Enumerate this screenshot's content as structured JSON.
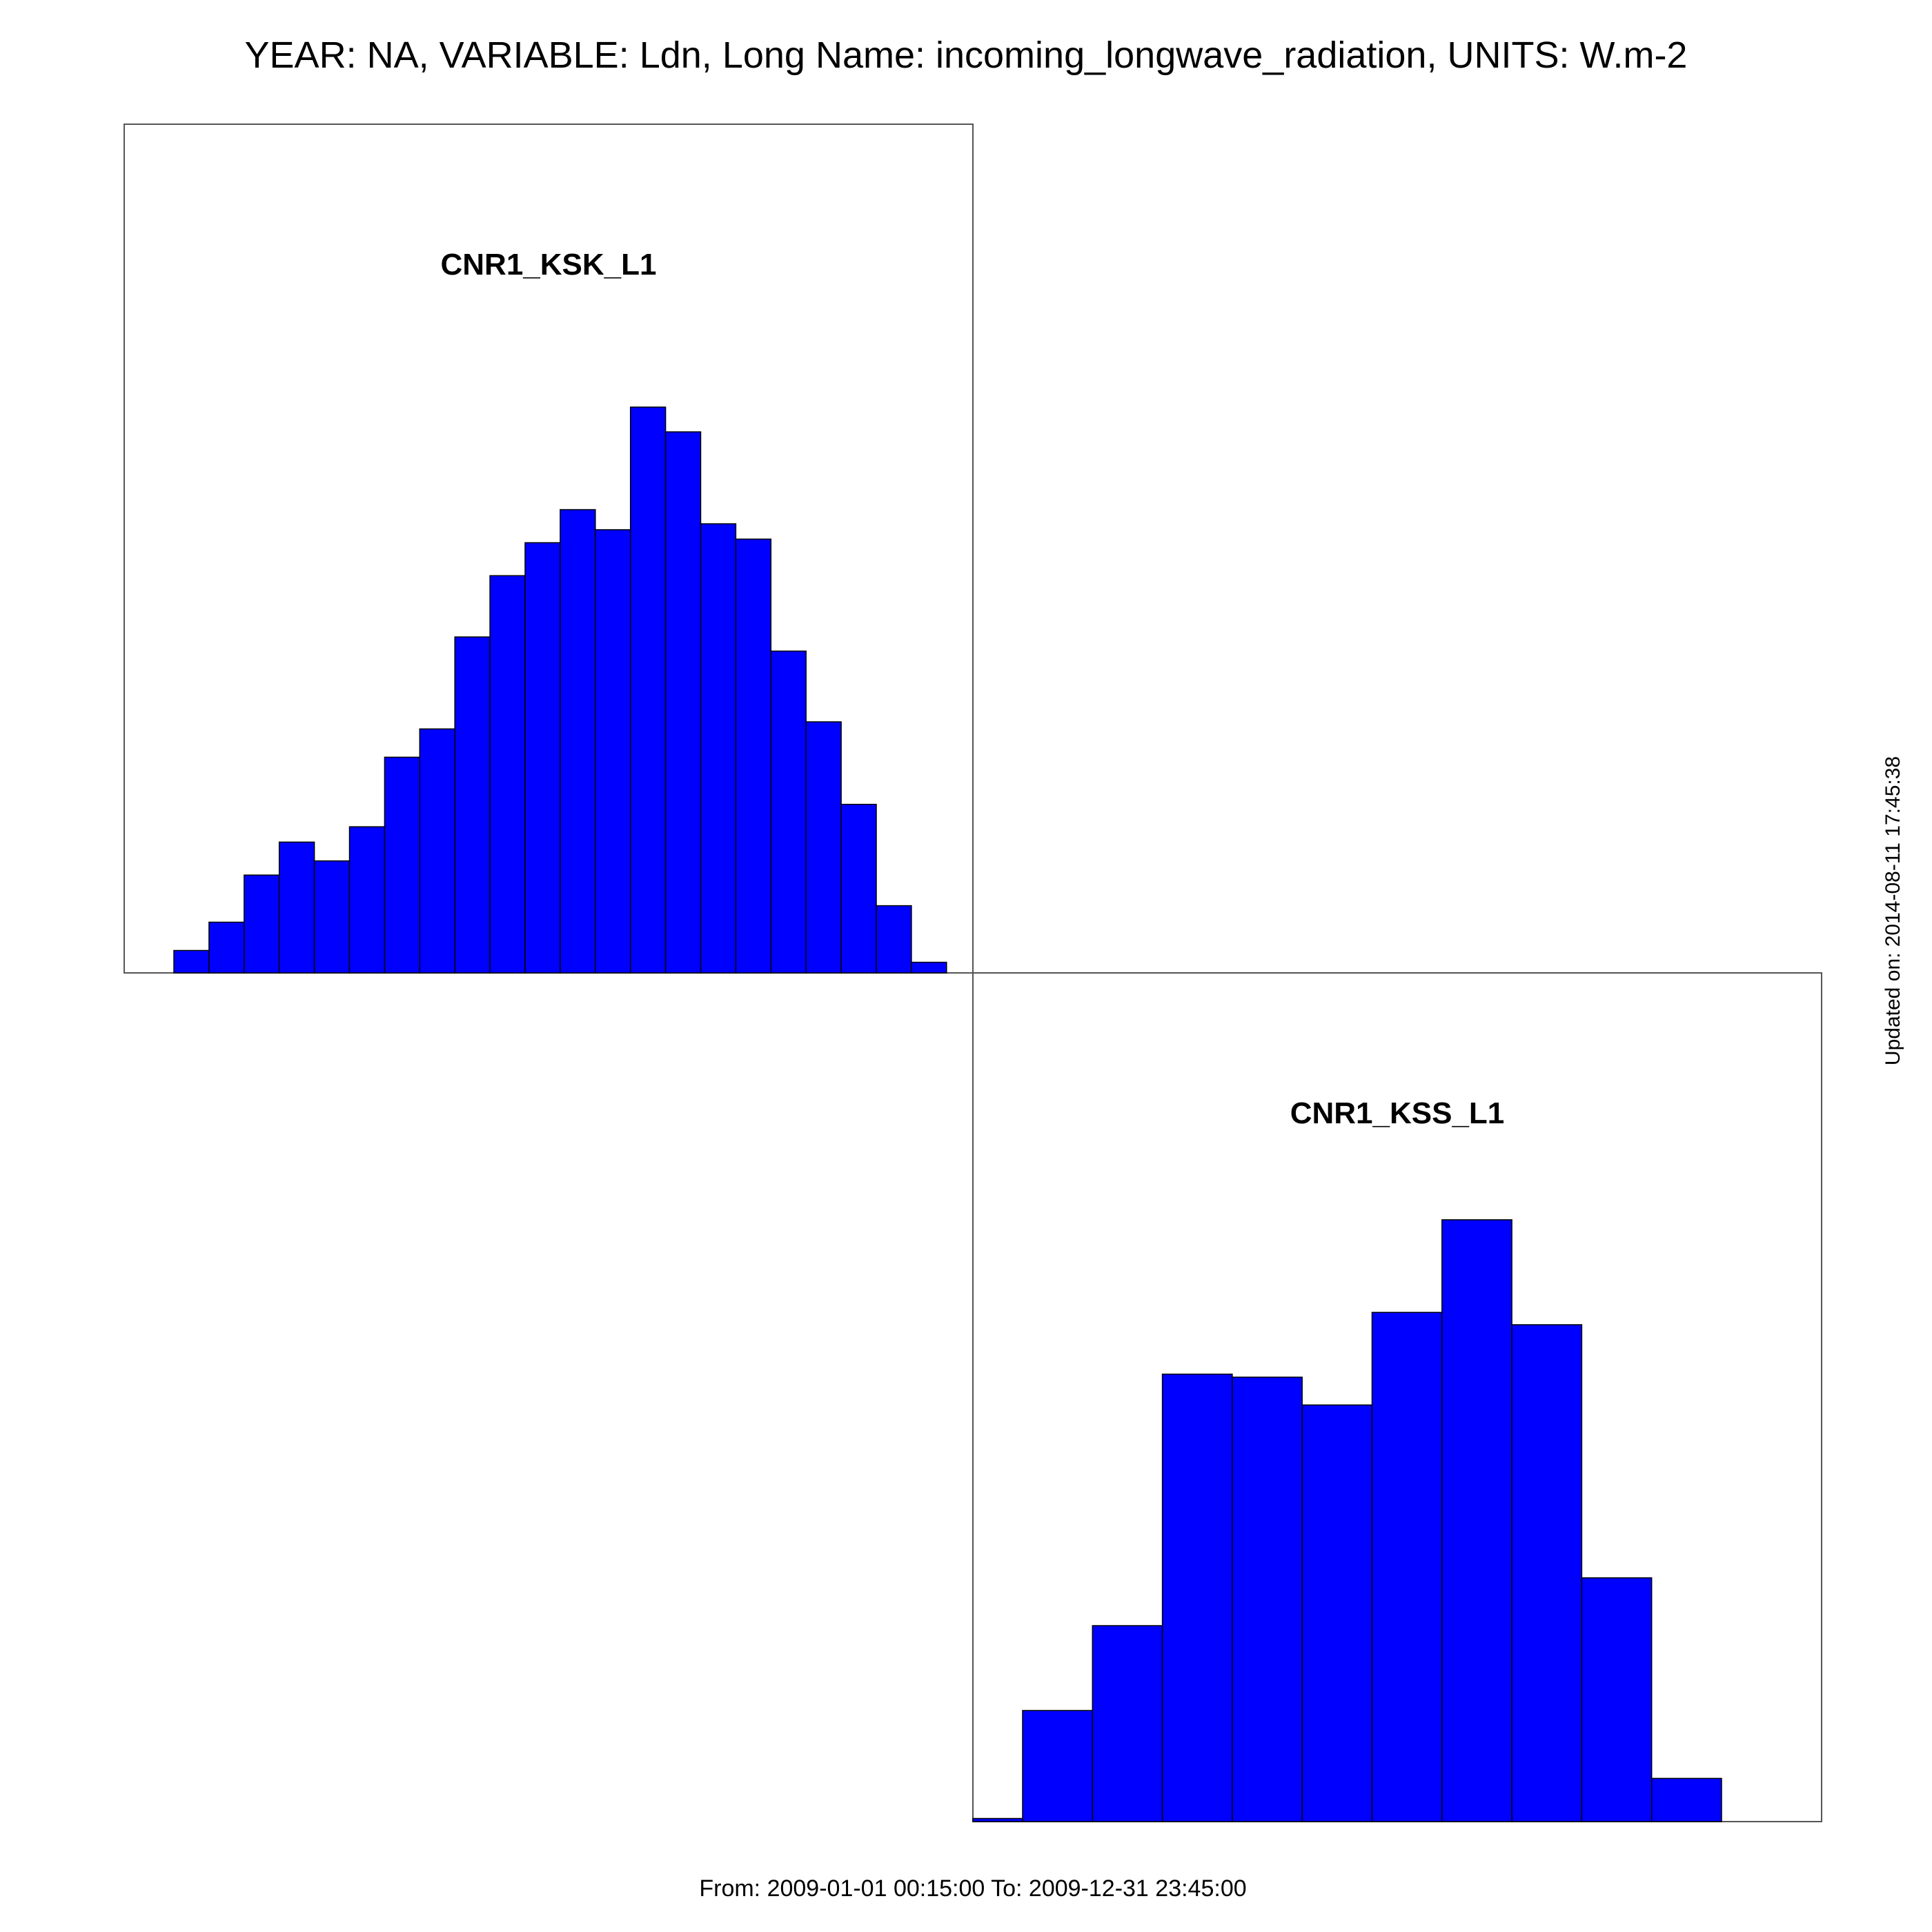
{
  "figure": {
    "title": "YEAR: NA, VARIABLE: Ldn, Long Name: incoming_longwave_radiation, UNITS: W.m-2",
    "footer": "From: 2009-01-01 00:15:00 To: 2009-12-31 23:45:00",
    "updated": "Updated on: 2014-08-11 17:45:38",
    "bar_color": "#0000ff",
    "bar_edge_color": "#000000"
  },
  "chart_data": [
    {
      "type": "bar",
      "title": "CNR1_KSK_L1",
      "xlabel": "",
      "ylabel": "",
      "values": [
        19,
        43,
        83,
        111,
        95,
        124,
        183,
        207,
        285,
        337,
        365,
        393,
        376,
        480,
        459,
        381,
        368,
        273,
        213,
        143,
        57,
        9
      ],
      "ylim": [
        0,
        720
      ],
      "grid": false
    },
    {
      "type": "bar",
      "title": "CNR1_KSS_L1",
      "xlabel": "",
      "ylabel": "",
      "values": [
        2,
        72,
        127,
        290,
        288,
        270,
        330,
        390,
        322,
        158,
        28
      ],
      "ylim": [
        0,
        550
      ],
      "grid": false
    }
  ]
}
